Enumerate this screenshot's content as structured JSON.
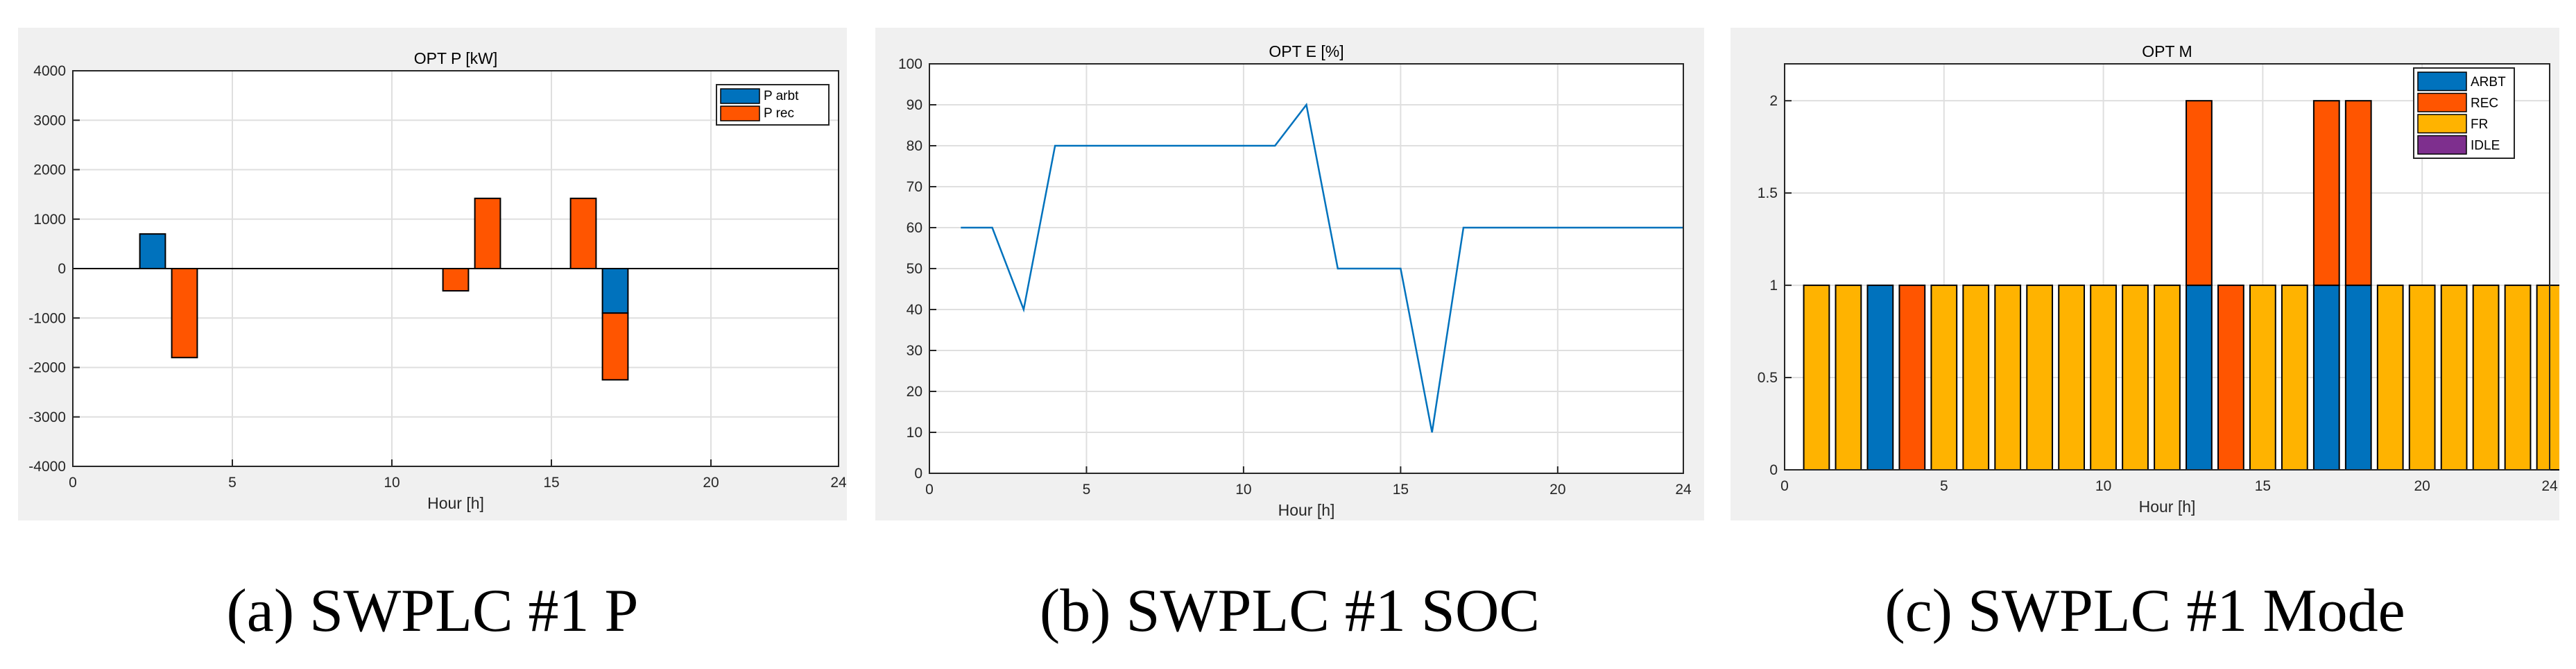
{
  "chart_data": [
    {
      "type": "bar",
      "stacked": true,
      "title": "OPT P [kW]",
      "xlabel": "Hour [h]",
      "ylabel": "",
      "xlim": [
        0,
        24
      ],
      "ylim": [
        -4000,
        4000
      ],
      "xticks": [
        0,
        5,
        10,
        15,
        20,
        24
      ],
      "yticks": [
        -4000,
        -3000,
        -2000,
        -1000,
        0,
        1000,
        2000,
        3000,
        4000
      ],
      "grid": true,
      "legend_position": "top-right",
      "x": [
        2.5,
        3.5,
        12,
        13,
        16,
        17
      ],
      "series": [
        {
          "name": "P arbt",
          "color": "#0072bd",
          "values": [
            700,
            0,
            0,
            0,
            0,
            -900
          ]
        },
        {
          "name": "P rec",
          "color": "#ff5500",
          "values": [
            0,
            -1800,
            -450,
            1420,
            1420,
            -1350
          ]
        }
      ],
      "caption": "(a) SWPLC #1 P"
    },
    {
      "type": "line",
      "title": "OPT E [%]",
      "xlabel": "Hour [h]",
      "ylabel": "",
      "xlim": [
        0,
        24
      ],
      "ylim": [
        0,
        100
      ],
      "xticks": [
        0,
        5,
        10,
        15,
        20,
        24
      ],
      "yticks": [
        0,
        10,
        20,
        30,
        40,
        50,
        60,
        70,
        80,
        90,
        100
      ],
      "grid": true,
      "series": [
        {
          "color": "#0072bd",
          "x": [
            1,
            2,
            3,
            4,
            5,
            6,
            7,
            8,
            9,
            10,
            11,
            12,
            13,
            14,
            15,
            16,
            17,
            18,
            19,
            20,
            21,
            22,
            23,
            24
          ],
          "values": [
            60,
            60,
            40,
            80,
            80,
            80,
            80,
            80,
            80,
            80,
            80,
            90,
            50,
            50,
            50,
            10,
            60,
            60,
            60,
            60,
            60,
            60,
            60,
            60
          ]
        }
      ],
      "caption": "(b) SWPLC #1 SOC"
    },
    {
      "type": "bar",
      "stacked": true,
      "title": "OPT M",
      "xlabel": "Hour [h]",
      "ylabel": "",
      "xlim": [
        0,
        24
      ],
      "ylim": [
        0,
        2.2
      ],
      "xticks": [
        0,
        5,
        10,
        15,
        20,
        24
      ],
      "yticks": [
        0,
        0.5,
        1,
        1.5,
        2
      ],
      "ytick_labels": [
        "0",
        "0.5",
        "1",
        "1.5",
        "2"
      ],
      "grid": true,
      "legend_position": "top-right",
      "x": [
        1,
        2,
        3,
        4,
        5,
        6,
        7,
        8,
        9,
        10,
        11,
        12,
        13,
        14,
        15,
        16,
        17,
        18,
        19,
        20,
        21,
        22,
        23,
        24
      ],
      "series": [
        {
          "name": "ARBT",
          "color": "#0072bd",
          "values": [
            0,
            0,
            1,
            0,
            0,
            0,
            0,
            0,
            0,
            0,
            0,
            0,
            1,
            0,
            0,
            0,
            1,
            1,
            0,
            0,
            0,
            0,
            0,
            0
          ]
        },
        {
          "name": "REC",
          "color": "#ff5500",
          "values": [
            0,
            0,
            0,
            1,
            0,
            0,
            0,
            0,
            0,
            0,
            0,
            0,
            1,
            1,
            0,
            0,
            1,
            1,
            0,
            0,
            0,
            0,
            0,
            0
          ]
        },
        {
          "name": "FR",
          "color": "#ffb300",
          "values": [
            1,
            1,
            0,
            0,
            1,
            1,
            1,
            1,
            1,
            1,
            1,
            1,
            0,
            0,
            1,
            1,
            0,
            0,
            1,
            1,
            1,
            1,
            1,
            1
          ]
        },
        {
          "name": "IDLE",
          "color": "#7e2f8e",
          "values": [
            0,
            0,
            0,
            0,
            0,
            0,
            0,
            0,
            0,
            0,
            0,
            0,
            0,
            0,
            0,
            0,
            0,
            0,
            0,
            0,
            0,
            0,
            0,
            0
          ]
        }
      ],
      "caption": "(c) SWPLC #1 Mode"
    }
  ]
}
